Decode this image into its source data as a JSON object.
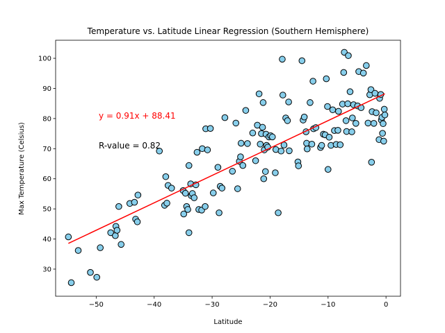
{
  "chart_data": {
    "type": "scatter",
    "title": "Temperature vs. Latitude Linear Regression (Southern Hemisphere)",
    "xlabel": "Latitude",
    "ylabel": "Max Temperature (Celsius)",
    "xlim": [
      -57,
      2.5
    ],
    "ylim": [
      21,
      106
    ],
    "xticks": [
      -50,
      -40,
      -30,
      -20,
      -10,
      0
    ],
    "yticks": [
      30,
      40,
      50,
      60,
      70,
      80,
      90,
      100
    ],
    "grid": false,
    "marker_color": "#87CEEB",
    "marker_edge_color": "#000000",
    "regression": {
      "slope": 0.91,
      "intercept": 88.41,
      "x_range": [
        -54.8,
        -0.2
      ],
      "color": "#ff0000"
    },
    "equation_label": "y = 0.91x + 88.41",
    "r_label": "R-value = 0.82",
    "points": [
      [
        -54.8,
        40.7
      ],
      [
        -54.3,
        25.5
      ],
      [
        -53.1,
        36.2
      ],
      [
        -51.0,
        28.9
      ],
      [
        -49.9,
        27.3
      ],
      [
        -49.3,
        37.1
      ],
      [
        -47.5,
        42.1
      ],
      [
        -46.7,
        41.1
      ],
      [
        -46.6,
        44.2
      ],
      [
        -46.4,
        42.9
      ],
      [
        -46.1,
        50.8
      ],
      [
        -45.7,
        38.2
      ],
      [
        -44.2,
        51.8
      ],
      [
        -43.4,
        52.2
      ],
      [
        -43.2,
        46.6
      ],
      [
        -42.9,
        45.7
      ],
      [
        -42.8,
        54.6
      ],
      [
        -39.1,
        69.2
      ],
      [
        -38.2,
        51.2
      ],
      [
        -38.0,
        60.7
      ],
      [
        -37.8,
        51.9
      ],
      [
        -37.6,
        57.8
      ],
      [
        -37.0,
        56.9
      ],
      [
        -35.0,
        56.1
      ],
      [
        -34.9,
        48.3
      ],
      [
        -34.6,
        55.2
      ],
      [
        -34.4,
        50.8
      ],
      [
        -34.2,
        49.8
      ],
      [
        -34.0,
        64.4
      ],
      [
        -34.0,
        42.1
      ],
      [
        -33.7,
        58.3
      ],
      [
        -33.6,
        54.4
      ],
      [
        -33.4,
        55.1
      ],
      [
        -33.1,
        53.7
      ],
      [
        -32.8,
        58.0
      ],
      [
        -32.6,
        68.8
      ],
      [
        -32.3,
        49.8
      ],
      [
        -31.8,
        49.6
      ],
      [
        -31.7,
        70.0
      ],
      [
        -31.2,
        50.8
      ],
      [
        -31.1,
        76.6
      ],
      [
        -30.8,
        69.6
      ],
      [
        -30.3,
        76.7
      ],
      [
        -29.8,
        55.3
      ],
      [
        -29.0,
        63.8
      ],
      [
        -28.8,
        48.7
      ],
      [
        -28.6,
        57.5
      ],
      [
        -28.3,
        56.9
      ],
      [
        -27.8,
        80.3
      ],
      [
        -26.5,
        62.5
      ],
      [
        -25.9,
        78.5
      ],
      [
        -25.6,
        56.7
      ],
      [
        -25.3,
        65.8
      ],
      [
        -25.1,
        67.3
      ],
      [
        -25.0,
        71.8
      ],
      [
        -24.7,
        64.4
      ],
      [
        -24.2,
        82.7
      ],
      [
        -23.9,
        71.7
      ],
      [
        -23.0,
        75.2
      ],
      [
        -22.5,
        66.0
      ],
      [
        -22.2,
        77.8
      ],
      [
        -21.9,
        88.2
      ],
      [
        -21.7,
        71.5
      ],
      [
        -21.5,
        75.0
      ],
      [
        -21.3,
        77.1
      ],
      [
        -21.2,
        85.3
      ],
      [
        -21.1,
        60.0
      ],
      [
        -21.0,
        69.6
      ],
      [
        -20.8,
        62.4
      ],
      [
        -20.7,
        74.8
      ],
      [
        -20.6,
        71.1
      ],
      [
        -20.4,
        70.5
      ],
      [
        -20.2,
        73.9
      ],
      [
        -19.9,
        74.3
      ],
      [
        -19.6,
        73.9
      ],
      [
        -19.1,
        62.0
      ],
      [
        -19.0,
        69.7
      ],
      [
        -18.6,
        48.7
      ],
      [
        -18.1,
        69.2
      ],
      [
        -17.9,
        99.7
      ],
      [
        -17.8,
        87.8
      ],
      [
        -17.6,
        71.2
      ],
      [
        -17.3,
        80.2
      ],
      [
        -17.0,
        79.3
      ],
      [
        -16.8,
        85.5
      ],
      [
        -16.7,
        69.3
      ],
      [
        -15.2,
        65.6
      ],
      [
        -15.1,
        64.3
      ],
      [
        -14.5,
        99.2
      ],
      [
        -14.3,
        79.5
      ],
      [
        -14.1,
        80.5
      ],
      [
        -13.8,
        75.6
      ],
      [
        -13.7,
        71.8
      ],
      [
        -13.6,
        69.9
      ],
      [
        -13.1,
        85.3
      ],
      [
        -12.8,
        71.5
      ],
      [
        -12.6,
        92.4
      ],
      [
        -12.5,
        76.6
      ],
      [
        -12.1,
        77.0
      ],
      [
        -11.3,
        70.4
      ],
      [
        -11.1,
        71.1
      ],
      [
        -10.8,
        74.8
      ],
      [
        -10.5,
        74.6
      ],
      [
        -10.3,
        93.2
      ],
      [
        -10.1,
        84.0
      ],
      [
        -10.0,
        63.1
      ],
      [
        -9.8,
        73.8
      ],
      [
        -9.5,
        71.1
      ],
      [
        -9.2,
        82.9
      ],
      [
        -8.9,
        76.0
      ],
      [
        -8.6,
        71.4
      ],
      [
        -8.3,
        76.1
      ],
      [
        -8.2,
        82.4
      ],
      [
        -7.9,
        71.3
      ],
      [
        -7.5,
        84.8
      ],
      [
        -7.3,
        95.3
      ],
      [
        -7.2,
        102.0
      ],
      [
        -6.9,
        79.3
      ],
      [
        -6.8,
        75.7
      ],
      [
        -6.6,
        84.9
      ],
      [
        -6.5,
        100.9
      ],
      [
        -6.2,
        88.9
      ],
      [
        -5.9,
        75.6
      ],
      [
        -5.8,
        80.2
      ],
      [
        -5.6,
        84.6
      ],
      [
        -5.2,
        78.4
      ],
      [
        -4.9,
        84.2
      ],
      [
        -4.7,
        95.6
      ],
      [
        -4.3,
        83.6
      ],
      [
        -3.9,
        95.1
      ],
      [
        -3.4,
        97.6
      ],
      [
        -3.1,
        78.5
      ],
      [
        -2.8,
        87.9
      ],
      [
        -2.6,
        89.6
      ],
      [
        -2.5,
        65.5
      ],
      [
        -2.4,
        82.3
      ],
      [
        -2.1,
        78.4
      ],
      [
        -1.9,
        88.4
      ],
      [
        -1.7,
        81.9
      ],
      [
        -1.2,
        73.0
      ],
      [
        -1.1,
        86.7
      ],
      [
        -0.9,
        88.0
      ],
      [
        -0.8,
        79.5
      ],
      [
        -0.7,
        80.4
      ],
      [
        -0.6,
        75.1
      ],
      [
        -0.5,
        78.3
      ],
      [
        -0.4,
        72.5
      ],
      [
        -0.3,
        83.1
      ],
      [
        -0.2,
        81.2
      ]
    ]
  }
}
